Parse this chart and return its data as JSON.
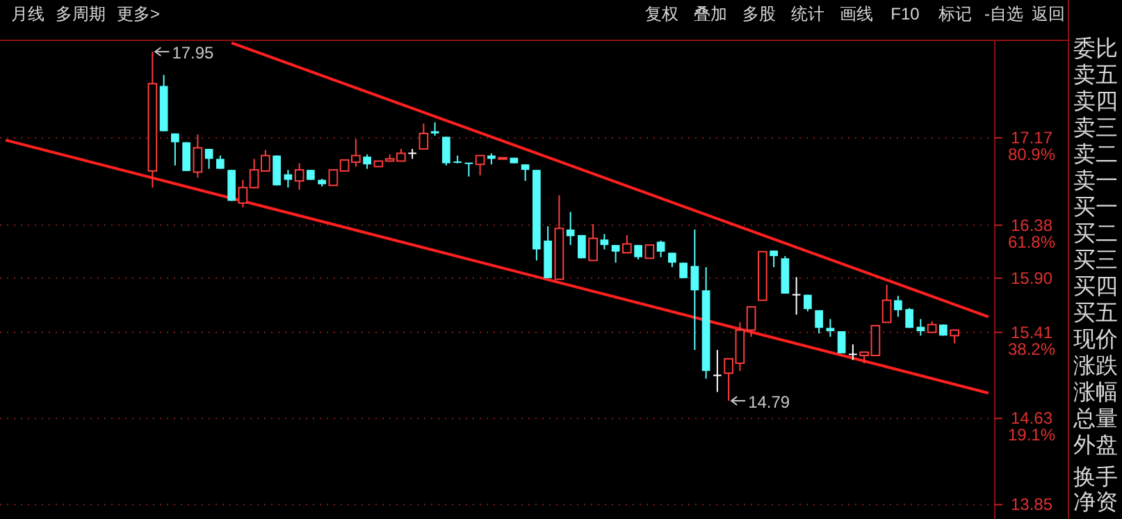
{
  "chart_data": {
    "type": "candlestick",
    "categories": [
      null,
      null,
      null,
      null,
      null,
      null,
      null,
      null,
      null,
      null,
      null,
      null,
      null,
      null,
      null,
      null,
      null,
      null,
      null,
      null,
      null,
      null,
      null,
      null,
      null,
      null,
      null,
      null,
      null,
      null,
      null,
      null,
      null,
      null,
      null,
      null,
      null,
      null,
      null,
      null,
      null,
      null,
      null,
      null,
      null,
      null,
      null,
      null,
      null,
      null,
      null,
      null,
      null,
      null,
      null,
      null,
      null,
      null,
      null,
      null,
      null,
      null,
      null,
      null,
      null,
      null,
      null,
      null,
      null,
      null,
      null,
      null,
      null,
      null,
      null,
      null,
      null,
      null,
      null,
      null,
      null,
      null,
      null,
      null,
      null,
      null,
      null,
      null
    ],
    "ohlc": [
      null,
      null,
      null,
      null,
      null,
      null,
      null,
      null,
      null,
      null,
      null,
      null,
      null,
      [
        16.87,
        17.95,
        16.72,
        17.66
      ],
      [
        17.64,
        17.74,
        17.23,
        17.23
      ],
      [
        17.21,
        17.21,
        16.92,
        17.13
      ],
      [
        17.13,
        17.13,
        16.87,
        16.87
      ],
      [
        16.86,
        17.2,
        16.81,
        17.08
      ],
      [
        17.07,
        17.07,
        16.89,
        16.98
      ],
      [
        16.98,
        17.01,
        16.89,
        16.89
      ],
      [
        16.88,
        16.88,
        16.6,
        16.6
      ],
      [
        16.58,
        16.79,
        16.54,
        16.72
      ],
      [
        16.72,
        16.98,
        16.71,
        16.88
      ],
      [
        16.87,
        17.06,
        16.87,
        17.01
      ],
      [
        17.01,
        17.01,
        16.74,
        16.74
      ],
      [
        16.84,
        16.88,
        16.72,
        16.79
      ],
      [
        16.78,
        16.94,
        16.7,
        16.88
      ],
      [
        16.88,
        16.88,
        16.79,
        16.79
      ],
      [
        16.79,
        16.8,
        16.73,
        16.75
      ],
      [
        16.74,
        16.88,
        16.74,
        16.88
      ],
      [
        16.87,
        16.97,
        16.87,
        16.97
      ],
      [
        16.95,
        17.16,
        16.91,
        17.01
      ],
      [
        17.0,
        17.02,
        16.89,
        16.93
      ],
      [
        16.91,
        16.96,
        16.91,
        16.96
      ],
      [
        16.96,
        17.02,
        16.96,
        16.98
      ],
      [
        16.96,
        17.07,
        16.96,
        17.03
      ],
      [
        17.03,
        17.07,
        16.98,
        17.03
      ],
      [
        17.07,
        17.3,
        17.07,
        17.21
      ],
      [
        17.23,
        17.31,
        17.19,
        17.21
      ],
      [
        17.18,
        17.18,
        16.92,
        16.94
      ],
      [
        16.95,
        17.01,
        16.94,
        16.94
      ],
      [
        16.94,
        16.94,
        16.82,
        16.93
      ],
      [
        16.93,
        17.01,
        16.83,
        17.01
      ],
      [
        17.01,
        17.03,
        16.93,
        16.98
      ],
      [
        16.98,
        16.99,
        16.98,
        16.99
      ],
      [
        16.99,
        16.99,
        16.94,
        16.94
      ],
      [
        16.93,
        16.93,
        16.78,
        16.88
      ],
      [
        16.88,
        16.88,
        16.06,
        16.16
      ],
      [
        16.24,
        16.37,
        15.9,
        15.9
      ],
      [
        15.89,
        16.65,
        15.89,
        16.35
      ],
      [
        16.34,
        16.5,
        16.2,
        16.28
      ],
      [
        16.29,
        16.29,
        16.08,
        16.08
      ],
      [
        16.06,
        16.39,
        16.06,
        16.26
      ],
      [
        16.25,
        16.3,
        16.16,
        16.2
      ],
      [
        16.2,
        16.2,
        16.04,
        16.14
      ],
      [
        16.13,
        16.29,
        16.13,
        16.21
      ],
      [
        16.2,
        16.2,
        16.07,
        16.09
      ],
      [
        16.08,
        16.2,
        16.08,
        16.2
      ],
      [
        16.23,
        16.24,
        16.09,
        16.14
      ],
      [
        16.13,
        16.13,
        16.0,
        16.04
      ],
      [
        16.04,
        16.04,
        15.9,
        15.9
      ],
      [
        16.01,
        16.34,
        15.25,
        15.79
      ],
      [
        15.79,
        16.0,
        14.99,
        15.06
      ],
      [
        15.02,
        15.25,
        14.87,
        15.02
      ],
      [
        15.04,
        15.17,
        14.79,
        15.17
      ],
      [
        15.13,
        15.5,
        15.06,
        15.43
      ],
      [
        15.43,
        15.64,
        15.37,
        15.64
      ],
      [
        15.7,
        16.14,
        15.7,
        16.14
      ],
      [
        16.15,
        16.15,
        16.0,
        16.1
      ],
      [
        16.08,
        16.1,
        15.76,
        15.76
      ],
      [
        15.75,
        15.91,
        15.57,
        15.75
      ],
      [
        15.75,
        15.75,
        15.6,
        15.62
      ],
      [
        15.61,
        15.61,
        15.4,
        15.45
      ],
      [
        15.45,
        15.53,
        15.37,
        15.42
      ],
      [
        15.42,
        15.42,
        15.22,
        15.22
      ],
      [
        15.21,
        15.3,
        15.16,
        15.21
      ],
      [
        15.2,
        15.23,
        15.13,
        15.23
      ],
      [
        15.2,
        15.47,
        15.2,
        15.47
      ],
      [
        15.5,
        15.84,
        15.5,
        15.7
      ],
      [
        15.7,
        15.74,
        15.55,
        15.61
      ],
      [
        15.62,
        15.63,
        15.45,
        15.45
      ],
      [
        15.46,
        15.53,
        15.38,
        15.42
      ],
      [
        15.41,
        15.51,
        15.41,
        15.48
      ],
      [
        15.48,
        15.48,
        15.38,
        15.38
      ],
      [
        15.38,
        15.43,
        15.31,
        15.43
      ],
      null,
      null,
      null
    ],
    "colors": [
      null,
      null,
      null,
      null,
      null,
      null,
      null,
      null,
      null,
      null,
      null,
      null,
      null,
      "#ff3c3c",
      "#54fcfc",
      "#54fcfc",
      "#54fcfc",
      "#ff3c3c",
      "#54fcfc",
      "#54fcfc",
      "#54fcfc",
      "#ff3c3c",
      "#ff3c3c",
      "#ff3c3c",
      "#54fcfc",
      "#54fcfc",
      "#ff3c3c",
      "#54fcfc",
      "#54fcfc",
      "#ff3c3c",
      "#ff3c3c",
      "#ff3c3c",
      "#54fcfc",
      "#ff3c3c",
      "#ff3c3c",
      "#ff3c3c",
      "#ffffff",
      "#ff3c3c",
      "#54fcfc",
      "#54fcfc",
      "#54fcfc",
      "#54fcfc",
      "#ff3c3c",
      "#54fcfc",
      "#ff3c3c",
      "#54fcfc",
      "#54fcfc",
      "#54fcfc",
      "#54fcfc",
      "#ff3c3c",
      "#54fcfc",
      "#54fcfc",
      "#ff3c3c",
      "#54fcfc",
      "#54fcfc",
      "#ff3c3c",
      "#54fcfc",
      "#ff3c3c",
      "#54fcfc",
      "#54fcfc",
      "#54fcfc",
      "#54fcfc",
      "#54fcfc",
      "#ffffff",
      "#ff3c3c",
      "#ff3c3c",
      "#ff3c3c",
      "#ff3c3c",
      "#54fcfc",
      "#54fcfc",
      "#ffffff",
      "#54fcfc",
      "#54fcfc",
      "#54fcfc",
      "#54fcfc",
      "#ffffff",
      "#ff3c3c",
      "#ff3c3c",
      "#ff3c3c",
      "#54fcfc",
      "#54fcfc",
      "#54fcfc",
      "#ff3c3c",
      "#54fcfc",
      "#ff3c3c",
      null,
      null,
      null
    ],
    "series": [
      {
        "type": "line",
        "color": "#ff2020",
        "values": [
          null,
          null,
          null,
          null,
          null,
          null,
          null,
          null,
          null,
          null,
          null,
          null,
          null,
          null,
          null,
          null,
          null,
          null,
          null,
          null,
          18.03,
          null,
          null,
          null,
          null,
          null,
          null,
          null,
          null,
          null,
          null,
          null,
          null,
          null,
          null,
          null,
          null,
          null,
          null,
          null,
          null,
          null,
          null,
          null,
          null,
          null,
          null,
          null,
          null,
          null,
          null,
          null,
          null,
          null,
          null,
          null,
          null,
          null,
          null,
          null,
          null,
          null,
          null,
          null,
          null,
          null,
          null,
          null,
          null,
          null,
          null,
          null,
          null,
          null,
          null,
          null,
          null,
          null,
          null,
          null,
          null,
          null,
          null,
          null,
          null,
          null,
          null,
          15.55
        ]
      },
      {
        "type": "line",
        "color": "#ff2020",
        "values": [
          17.15,
          null,
          null,
          null,
          null,
          null,
          null,
          null,
          null,
          null,
          null,
          null,
          null,
          null,
          null,
          null,
          null,
          null,
          null,
          null,
          null,
          null,
          null,
          null,
          null,
          null,
          null,
          null,
          null,
          null,
          null,
          null,
          null,
          null,
          null,
          null,
          null,
          null,
          null,
          null,
          null,
          null,
          null,
          null,
          null,
          null,
          null,
          null,
          null,
          null,
          null,
          null,
          null,
          null,
          null,
          null,
          null,
          null,
          null,
          null,
          null,
          null,
          null,
          null,
          null,
          null,
          null,
          null,
          null,
          null,
          null,
          null,
          null,
          null,
          null,
          null,
          null,
          null,
          null,
          null,
          null,
          null,
          null,
          null,
          null,
          null,
          null,
          14.86
        ]
      }
    ],
    "ylim": [
      13.72,
      18.04
    ],
    "yticks": [
      {
        "value": 17.17,
        "label": "17.17\n80.9%"
      },
      {
        "value": 16.38,
        "label": "16.38\n61.8%"
      },
      {
        "value": 15.9,
        "label": "15.90"
      },
      {
        "value": 15.41,
        "label": "15.41\n38.2%"
      },
      {
        "value": 14.63,
        "label": "14.63\n19.1%"
      },
      {
        "value": 13.85,
        "label": "13.85"
      }
    ],
    "grid": "y",
    "annotations": [
      "月线",
      "多周期",
      "更多>",
      "复权",
      "叠加",
      "多股",
      "统计",
      "画线",
      "F10",
      "标记",
      "-自选",
      "返回",
      "委比",
      "卖五",
      "卖四",
      "卖三",
      "卖二",
      "卖一",
      "买一",
      "买二",
      "买三",
      "买四",
      "买五",
      "现价",
      "涨跌",
      "涨幅",
      "总量",
      "外盘",
      "换手",
      "净资",
      "17.95",
      "14.79"
    ]
  }
}
